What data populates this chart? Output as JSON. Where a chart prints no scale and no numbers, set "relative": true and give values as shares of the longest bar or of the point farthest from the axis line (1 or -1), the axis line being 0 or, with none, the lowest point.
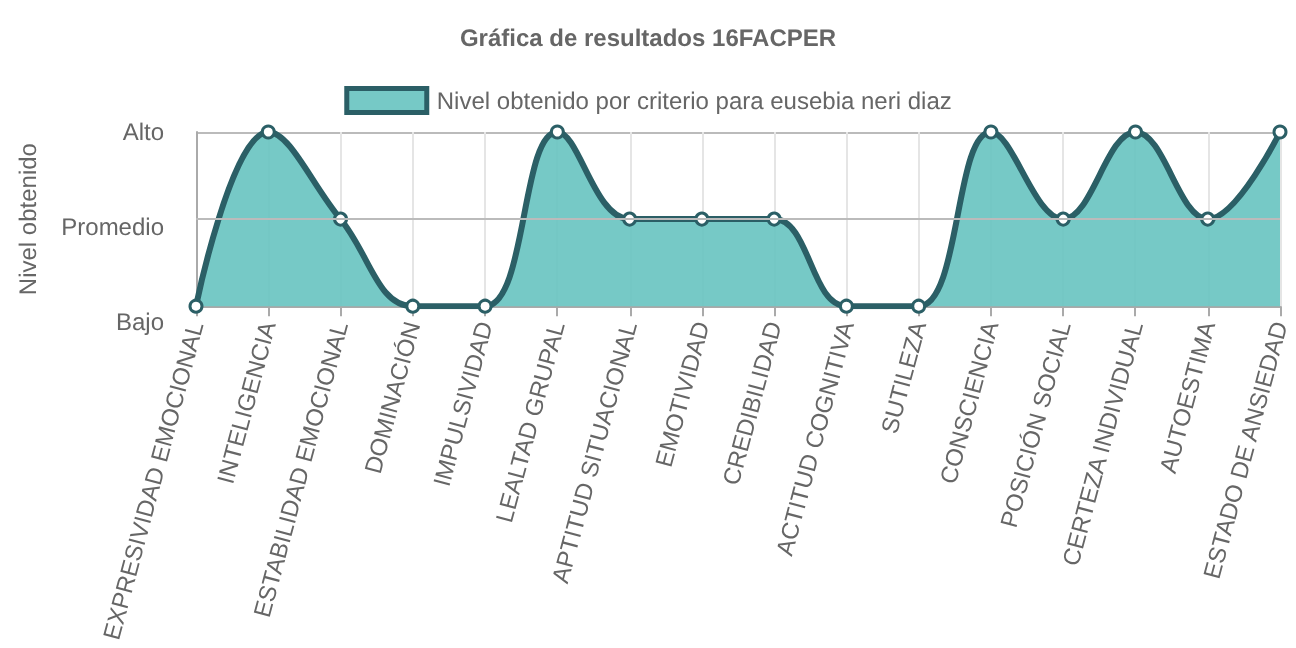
{
  "chart_data": {
    "type": "area",
    "title": "Gráfica de resultados 16FACPER",
    "ylabel": "Nivel obtenido",
    "relative": true,
    "categories": [
      "EXPRESIVIDAD EMOCIONAL",
      "INTELIGENCIA",
      "ESTABILIDAD EMOCIONAL",
      "DOMINACIÓN",
      "IMPULSIVIDAD",
      "LEALTAD GRUPAL",
      "APTITUD SITUACIONAL",
      "EMOTIVIDAD",
      "CREDIBILIDAD",
      "ACTITUD COGNITIVA",
      "SUTILEZA",
      "CONSCIENCIA",
      "POSICIÓN SOCIAL",
      "CERTEZA INDIVIDUAL",
      "AUTOESTIMA",
      "ESTADO DE ANSIEDAD"
    ],
    "annotations": [
      "Bajo",
      "Promedio",
      "Alto"
    ],
    "series": [
      {
        "name": "Nivel obtenido por criterio para eusebia neri diaz",
        "color": "#2b5f66",
        "values": [
          0,
          1,
          0.5,
          0,
          0,
          1,
          0.5,
          0.5,
          0.5,
          0,
          0,
          1,
          0.5,
          1,
          0.5,
          1
        ]
      }
    ],
    "ref_lines": [
      {
        "axis": "y",
        "value": 0.5,
        "color": "#bbbbbb"
      }
    ],
    "grid": true,
    "legend": "top",
    "marker": "circle",
    "line_style": "solid"
  }
}
